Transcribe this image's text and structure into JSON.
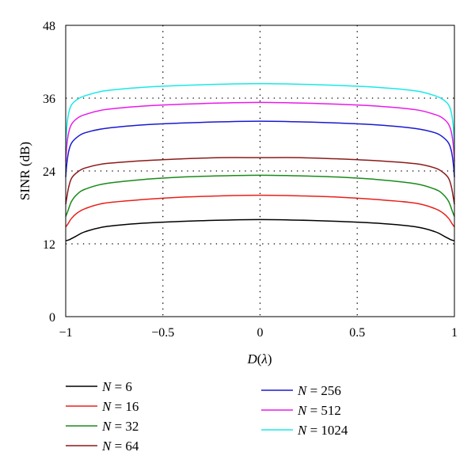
{
  "chart_data": {
    "type": "line",
    "xlabel": "D(λ)",
    "ylabel": "SINR (dB)",
    "xlim": [
      -1,
      1
    ],
    "ylim": [
      0,
      48
    ],
    "xticks": [
      -1,
      -0.5,
      0,
      0.5,
      1
    ],
    "xtick_labels": [
      "−1",
      "−0.5",
      "0",
      "0.5",
      "1"
    ],
    "yticks": [
      0,
      12,
      24,
      36,
      48
    ],
    "ytick_labels": [
      "0",
      "12",
      "24",
      "36",
      "48"
    ],
    "grid": "dotted",
    "grid_x": [
      -0.5,
      0,
      0.5
    ],
    "grid_y": [
      12,
      24,
      36
    ],
    "legend_position": "below",
    "series": [
      {
        "name": "N = 6",
        "color": "#000000",
        "x": [
          -1,
          -0.98,
          -0.95,
          -0.9,
          -0.8,
          -0.6,
          -0.4,
          -0.2,
          0,
          0.2,
          0.4,
          0.6,
          0.8,
          0.9,
          0.95,
          0.98,
          1
        ],
        "y": [
          12.5,
          12.7,
          13.2,
          14.0,
          14.8,
          15.4,
          15.7,
          15.9,
          16.0,
          15.9,
          15.7,
          15.4,
          14.8,
          14.0,
          13.2,
          12.7,
          12.5
        ]
      },
      {
        "name": "N = 16",
        "color": "#e8201a",
        "x": [
          -1,
          -0.99,
          -0.97,
          -0.94,
          -0.9,
          -0.8,
          -0.6,
          -0.4,
          -0.2,
          0,
          0.2,
          0.4,
          0.6,
          0.8,
          0.9,
          0.94,
          0.97,
          0.99,
          1
        ],
        "y": [
          14.8,
          15.2,
          16.2,
          17.1,
          17.8,
          18.7,
          19.3,
          19.7,
          19.9,
          20.0,
          19.9,
          19.7,
          19.3,
          18.7,
          17.8,
          17.1,
          16.2,
          15.2,
          14.8
        ]
      },
      {
        "name": "N = 32",
        "color": "#1a8a1a",
        "x": [
          -1,
          -0.99,
          -0.97,
          -0.94,
          -0.9,
          -0.8,
          -0.6,
          -0.4,
          -0.2,
          0,
          0.2,
          0.4,
          0.6,
          0.8,
          0.9,
          0.94,
          0.97,
          0.99,
          1
        ],
        "y": [
          16.5,
          17.3,
          19.0,
          20.2,
          21.0,
          21.9,
          22.6,
          23.0,
          23.2,
          23.3,
          23.2,
          23.0,
          22.6,
          21.9,
          21.0,
          20.2,
          19.0,
          17.3,
          16.5
        ]
      },
      {
        "name": "N = 64",
        "color": "#8b1a1a",
        "x": [
          -1,
          -0.995,
          -0.985,
          -0.97,
          -0.94,
          -0.9,
          -0.8,
          -0.6,
          -0.4,
          -0.2,
          0,
          0.2,
          0.4,
          0.6,
          0.8,
          0.9,
          0.94,
          0.97,
          0.985,
          0.995,
          1
        ],
        "y": [
          18.5,
          19.5,
          21.3,
          22.8,
          23.8,
          24.5,
          25.2,
          25.7,
          26.0,
          26.2,
          26.2,
          26.2,
          26.0,
          25.7,
          25.2,
          24.5,
          23.8,
          22.8,
          21.3,
          19.5,
          18.5
        ]
      },
      {
        "name": "N = 256",
        "color": "#1a1ad0",
        "x": [
          -1,
          -0.995,
          -0.985,
          -0.97,
          -0.94,
          -0.9,
          -0.8,
          -0.6,
          -0.4,
          -0.2,
          0,
          0.2,
          0.4,
          0.6,
          0.8,
          0.9,
          0.94,
          0.97,
          0.985,
          0.995,
          1
        ],
        "y": [
          23.0,
          25.0,
          27.2,
          28.6,
          29.6,
          30.3,
          31.0,
          31.6,
          31.9,
          32.1,
          32.2,
          32.1,
          31.9,
          31.6,
          31.0,
          30.3,
          29.6,
          28.6,
          27.2,
          25.0,
          23.0
        ]
      },
      {
        "name": "N = 512",
        "color": "#e81ae8",
        "x": [
          -1,
          -0.995,
          -0.985,
          -0.97,
          -0.94,
          -0.9,
          -0.8,
          -0.6,
          -0.4,
          -0.2,
          0,
          0.2,
          0.4,
          0.6,
          0.8,
          0.9,
          0.94,
          0.97,
          0.985,
          0.995,
          1
        ],
        "y": [
          25.5,
          28.0,
          30.3,
          31.7,
          32.7,
          33.3,
          34.1,
          34.7,
          35.0,
          35.2,
          35.3,
          35.2,
          35.0,
          34.7,
          34.1,
          33.3,
          32.7,
          31.7,
          30.3,
          28.0,
          25.5
        ]
      },
      {
        "name": "N = 1024",
        "color": "#1ae8e8",
        "x": [
          -1,
          -0.995,
          -0.985,
          -0.97,
          -0.94,
          -0.9,
          -0.8,
          -0.6,
          -0.4,
          -0.2,
          0,
          0.2,
          0.4,
          0.6,
          0.8,
          0.9,
          0.94,
          0.97,
          0.985,
          0.995,
          1
        ],
        "y": [
          27.5,
          31.0,
          33.5,
          34.9,
          35.8,
          36.4,
          37.2,
          37.8,
          38.1,
          38.3,
          38.4,
          38.3,
          38.1,
          37.8,
          37.2,
          36.4,
          35.8,
          34.9,
          33.5,
          31.0,
          27.5
        ]
      }
    ]
  }
}
